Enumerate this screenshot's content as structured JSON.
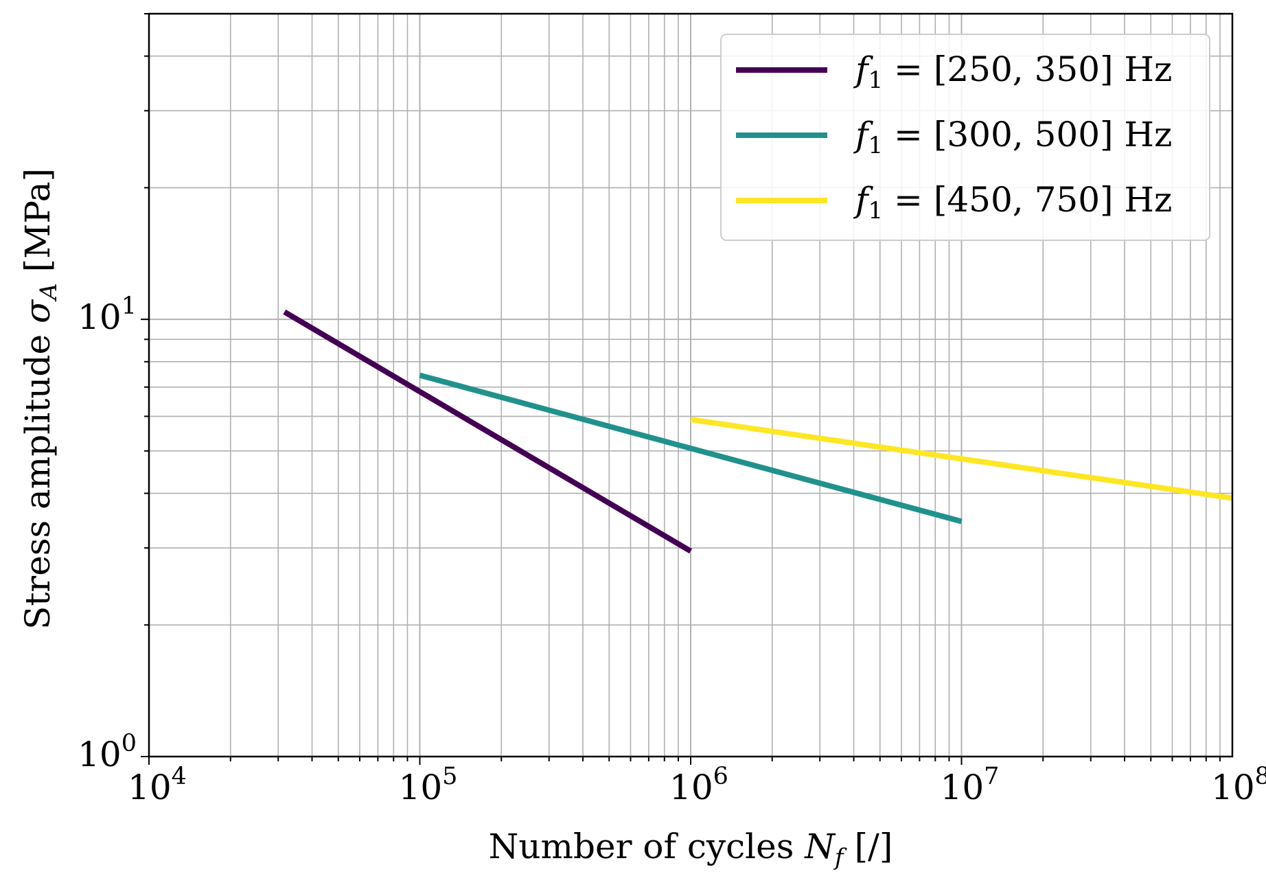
{
  "chart_data": {
    "type": "line",
    "xscale": "log",
    "yscale": "log",
    "xlim": [
      10000,
      100000000
    ],
    "ylim": [
      1,
      50
    ],
    "grid": true,
    "grid_minor": true,
    "xlabel_text": "Number of cycles",
    "xlabel_symbol": "N",
    "xlabel_subscript": "f",
    "xlabel_unit": "[/]",
    "ylabel_text": "Stress amplitude",
    "ylabel_symbol": "σ",
    "ylabel_subscript": "A",
    "ylabel_unit": "[MPa]",
    "x_ticks": [
      {
        "value": 10000,
        "base": "10",
        "exp": "4"
      },
      {
        "value": 100000,
        "base": "10",
        "exp": "5"
      },
      {
        "value": 1000000,
        "base": "10",
        "exp": "6"
      },
      {
        "value": 10000000,
        "base": "10",
        "exp": "7"
      },
      {
        "value": 100000000,
        "base": "10",
        "exp": "8"
      }
    ],
    "y_ticks": [
      {
        "value": 1,
        "base": "10",
        "exp": "0"
      },
      {
        "value": 10,
        "base": "10",
        "exp": "1"
      }
    ],
    "legend_position": "top-right",
    "series": [
      {
        "name_symbol": "f",
        "name_subscript": "1",
        "name_rest": " = [250, 350] Hz",
        "color": "#440154",
        "x": [
          31623,
          1000000
        ],
        "y": [
          10.4,
          2.95
        ]
      },
      {
        "name_symbol": "f",
        "name_subscript": "1",
        "name_rest": " = [300, 500] Hz",
        "color": "#21918c",
        "x": [
          100000,
          10000000
        ],
        "y": [
          7.45,
          3.45
        ]
      },
      {
        "name_symbol": "f",
        "name_subscript": "1",
        "name_rest": " = [450, 750] Hz",
        "color": "#fde725",
        "x": [
          1000000,
          100000000
        ],
        "y": [
          5.9,
          3.9
        ]
      }
    ]
  }
}
